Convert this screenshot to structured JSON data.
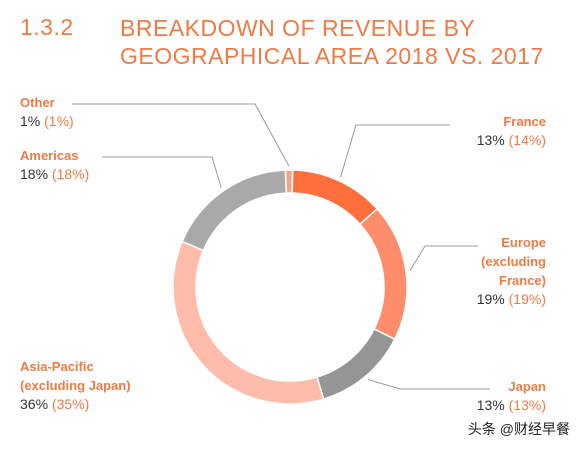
{
  "heading": {
    "number": "1.3.2",
    "title": "BREAKDOWN OF REVENUE BY GEOGRAPHICAL AREA 2018 VS. 2017"
  },
  "chart_data": {
    "type": "pie",
    "variant": "donut",
    "title": "BREAKDOWN OF REVENUE BY GEOGRAPHICAL AREA 2018 VS. 2017",
    "start": "top, clockwise from Other",
    "slices": [
      {
        "key": "other",
        "name": "Other",
        "value": 1,
        "current": "1%",
        "previous": "(1%)",
        "color": "#f4a38b"
      },
      {
        "key": "france",
        "name": "France",
        "value": 13,
        "current": "13%",
        "previous": "(14%)",
        "color": "#ff6f3c"
      },
      {
        "key": "europe",
        "name": "Europe (excluding France)",
        "name_lines": [
          "Europe",
          "(excluding",
          "France)"
        ],
        "value": 19,
        "current": "19%",
        "previous": "(19%)",
        "color": "#ff8c6b"
      },
      {
        "key": "japan",
        "name": "Japan",
        "value": 13,
        "current": "13%",
        "previous": "(13%)",
        "color": "#959596"
      },
      {
        "key": "asia",
        "name": "Asia-Pacific (excluding Japan)",
        "name_lines": [
          "Asia-Pacific",
          "(excluding Japan)"
        ],
        "value": 36,
        "current": "36%",
        "previous": "(35%)",
        "color": "#ffbcaa"
      },
      {
        "key": "americas",
        "name": "Americas",
        "value": 18,
        "current": "18%",
        "previous": "(18%)",
        "color": "#a9a9aa"
      }
    ],
    "leader_color": "#9a9a9a"
  },
  "watermark": "头条 @财经早餐"
}
